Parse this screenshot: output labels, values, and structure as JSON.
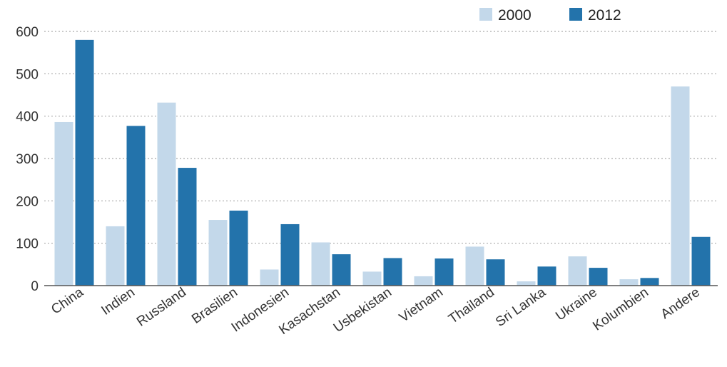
{
  "chart_data": {
    "type": "bar",
    "categories": [
      "China",
      "Indien",
      "Russland",
      "Brasilien",
      "Indonesien",
      "Kasachstan",
      "Usbekistan",
      "Vietnam",
      "Thailand",
      "Sri Lanka",
      "Ukraine",
      "Kolumbien",
      "Andere"
    ],
    "series": [
      {
        "name": "2000",
        "color": "#c3d8ea",
        "values": [
          386,
          140,
          432,
          155,
          38,
          102,
          33,
          22,
          92,
          10,
          69,
          15,
          470
        ]
      },
      {
        "name": "2012",
        "color": "#2373ab",
        "values": [
          580,
          377,
          278,
          177,
          145,
          74,
          65,
          64,
          62,
          45,
          42,
          18,
          115
        ]
      }
    ],
    "yticks": [
      "0",
      "100",
      "200",
      "300",
      "400",
      "500",
      "600"
    ],
    "ylim": [
      0,
      600
    ],
    "grid": "horizontal dotted",
    "legend_position": "top-right",
    "title": "",
    "xlabel": "",
    "ylabel": ""
  }
}
